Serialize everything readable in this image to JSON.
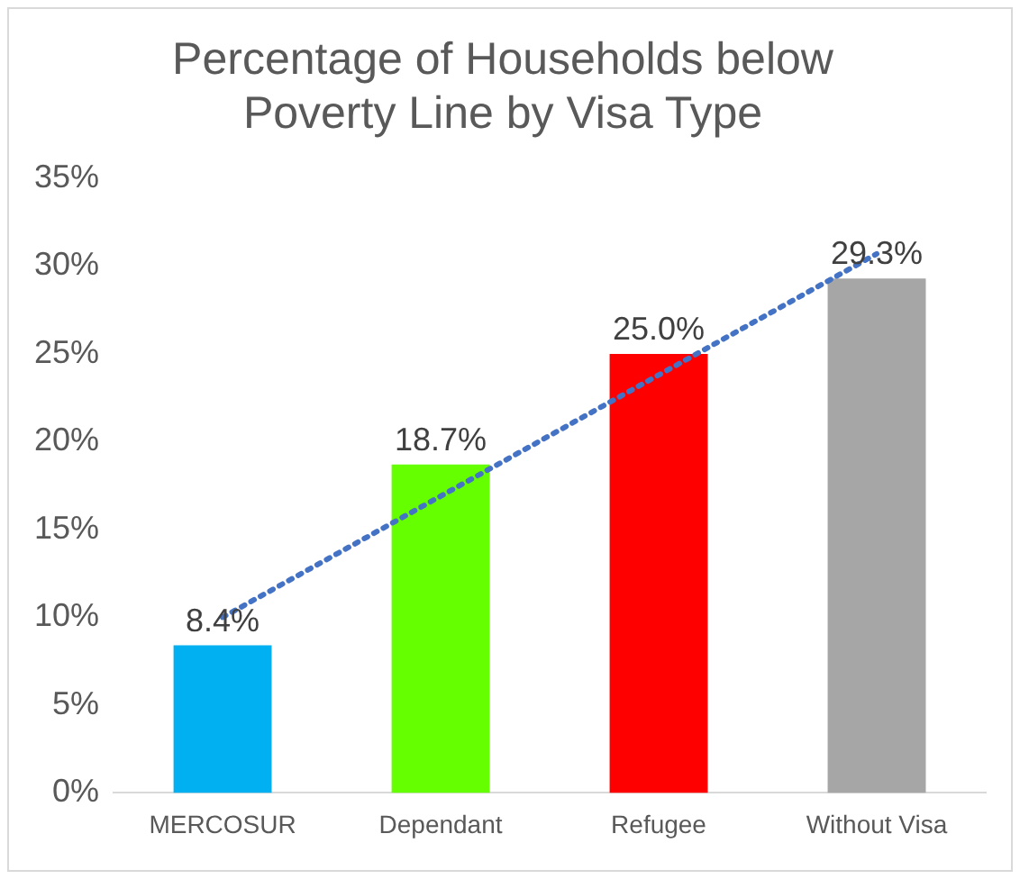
{
  "chart_data": {
    "type": "bar",
    "title": [
      "Percentage of Households below",
      "Poverty Line by Visa Type"
    ],
    "categories": [
      "MERCOSUR",
      "Dependant",
      "Refugee",
      "Without Visa"
    ],
    "series": [
      {
        "colors": [
          "#00b0f0",
          "#66ff00",
          "#ff0000",
          "#a6a6a6"
        ],
        "values": [
          8.4,
          18.7,
          25.0,
          29.3
        ],
        "value_labels": [
          "8.4%",
          "18.7%",
          "25.0%",
          "29.3%"
        ]
      },
      {
        "type": "line",
        "color": "#4472c4",
        "line_style": "dotted",
        "marker": "none",
        "x": [
          "MERCOSUR",
          "Without Visa"
        ],
        "values": [
          10.0,
          30.7
        ]
      }
    ],
    "ylim": [
      0,
      35
    ],
    "yticks": [
      {
        "value": 0,
        "label": "0%"
      },
      {
        "value": 5,
        "label": "5%"
      },
      {
        "value": 10,
        "label": "10%"
      },
      {
        "value": 15,
        "label": "15%"
      },
      {
        "value": 20,
        "label": "20%"
      },
      {
        "value": 25,
        "label": "25%"
      },
      {
        "value": 30,
        "label": "30%"
      },
      {
        "value": 35,
        "label": "35%"
      }
    ],
    "grid": false,
    "legend": false
  }
}
